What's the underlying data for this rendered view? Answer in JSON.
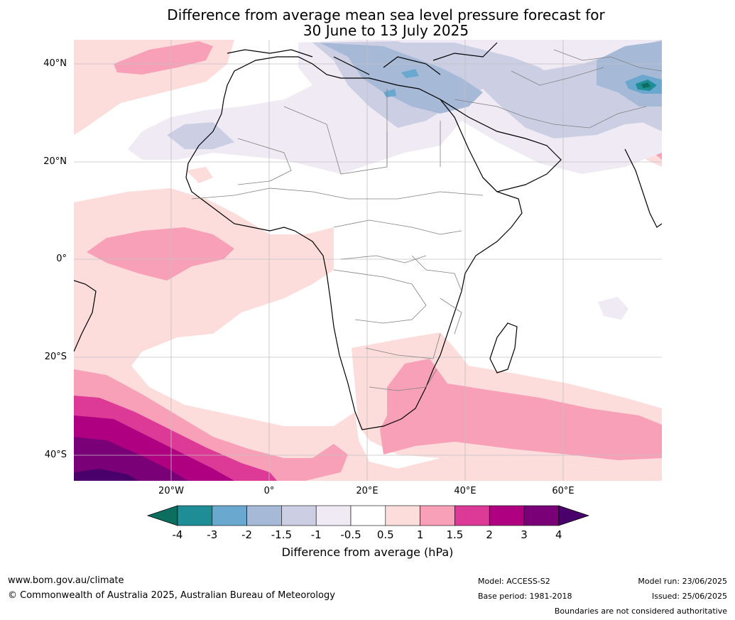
{
  "title_line1": "Difference from average mean sea level pressure forecast for",
  "title_line2": "30 June to 13 July 2025",
  "lat_labels": [
    "40°N",
    "20°N",
    "0°",
    "20°S",
    "40°S"
  ],
  "lon_labels": [
    "20°W",
    "0°",
    "20°E",
    "40°E",
    "60°E"
  ],
  "colorbar": {
    "ticks": [
      "-4",
      "-3",
      "-2",
      "-1.5",
      "-1",
      "-0.5",
      "0.5",
      "1",
      "1.5",
      "2",
      "3",
      "4"
    ],
    "colors": [
      "#0b6e5f",
      "#1f8d96",
      "#6aa8cf",
      "#a6bad8",
      "#cccfe4",
      "#efeaf3",
      "#ffffff",
      "#fddcdc",
      "#f9a0b9",
      "#dd3a98",
      "#ae0081",
      "#790076",
      "#4a006a"
    ],
    "title": "Difference from average (hPa)"
  },
  "footer": {
    "website": "www.bom.gov.au/climate",
    "copyright": "© Commonwealth of Australia 2025, Australian Bureau of Meteorology",
    "model": "Model: ACCESS-S2",
    "base_period": "Base period: 1981-2018",
    "model_run": "Model run: 23/06/2025",
    "issued": "Issued: 25/06/2025",
    "boundaries": "Boundaries are not considered authoritative"
  }
}
